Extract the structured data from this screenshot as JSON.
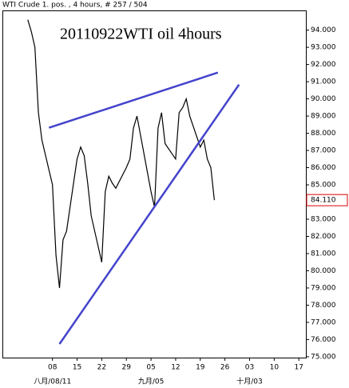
{
  "chart_data": {
    "type": "line",
    "title": "WTI Crude 1. pos. , 4 hours, # 257 / 504",
    "annotation": "20110922WTI oil 4hours",
    "x": [
      "2011-08-01",
      "2011-08-02",
      "2011-08-03",
      "2011-08-04",
      "2011-08-05",
      "2011-08-08",
      "2011-08-09",
      "2011-08-10",
      "2011-08-11",
      "2011-08-12",
      "2011-08-15",
      "2011-08-16",
      "2011-08-17",
      "2011-08-18",
      "2011-08-19",
      "2011-08-22",
      "2011-08-23",
      "2011-08-24",
      "2011-08-25",
      "2011-08-26",
      "2011-08-29",
      "2011-08-30",
      "2011-08-31",
      "2011-09-01",
      "2011-09-02",
      "2011-09-05",
      "2011-09-06",
      "2011-09-07",
      "2011-09-08",
      "2011-09-09",
      "2011-09-12",
      "2011-09-13",
      "2011-09-14",
      "2011-09-15",
      "2011-09-16",
      "2011-09-19",
      "2011-09-20",
      "2011-09-21",
      "2011-09-22",
      "2011-09-23"
    ],
    "series": [
      {
        "name": "WTI Crude",
        "color": "#000000",
        "values": [
          94.6,
          93.9,
          93.0,
          89.2,
          87.6,
          85.0,
          80.9,
          79.0,
          81.8,
          82.3,
          86.5,
          87.2,
          86.7,
          85.1,
          83.2,
          80.5,
          84.6,
          85.5,
          85.1,
          84.8,
          86.0,
          86.5,
          88.3,
          89.0,
          87.9,
          84.6,
          83.7,
          88.3,
          89.2,
          87.4,
          86.5,
          89.2,
          89.5,
          90.0,
          89.0,
          87.2,
          87.6,
          86.5,
          86.0,
          84.11
        ]
      }
    ],
    "trendlines": [
      {
        "x": [
          "2011-08-07",
          "2011-09-24"
        ],
        "values": [
          88.32,
          91.53
        ],
        "color": "#4444cc"
      },
      {
        "x": [
          "2011-08-10",
          "2011-09-30"
        ],
        "values": [
          75.74,
          90.83
        ],
        "color": "#4444cc"
      }
    ],
    "last_price": {
      "value": 84.11,
      "label": "84.110"
    },
    "xlim": [
      "2011-07-25",
      "2011-10-19"
    ],
    "xticks": [
      {
        "value": "2011-08-08",
        "label": "08"
      },
      {
        "value": "2011-08-15",
        "label": "15"
      },
      {
        "value": "2011-08-22",
        "label": "22"
      },
      {
        "value": "2011-08-29",
        "label": "29"
      },
      {
        "value": "2011-09-05",
        "label": "05"
      },
      {
        "value": "2011-09-12",
        "label": "12"
      },
      {
        "value": "2011-09-19",
        "label": "19"
      },
      {
        "value": "2011-09-26",
        "label": "26"
      },
      {
        "value": "2011-10-03",
        "label": "03"
      },
      {
        "value": "2011-10-10",
        "label": "10"
      },
      {
        "value": "2011-10-17",
        "label": "17"
      }
    ],
    "month_labels": [
      {
        "value": "2011-08-08",
        "label": "八月/08/11"
      },
      {
        "value": "2011-09-05",
        "label": "九月/05"
      },
      {
        "value": "2011-10-03",
        "label": "十月/03"
      }
    ],
    "ylim": [
      74.95,
      95.1
    ],
    "yticks": [
      {
        "value": 75,
        "label": "75.000"
      },
      {
        "value": 76,
        "label": "76.000"
      },
      {
        "value": 77,
        "label": "77.000"
      },
      {
        "value": 78,
        "label": "78.000"
      },
      {
        "value": 79,
        "label": "79.000"
      },
      {
        "value": 80,
        "label": "80.000"
      },
      {
        "value": 81,
        "label": "81.000"
      },
      {
        "value": 82,
        "label": "82.000"
      },
      {
        "value": 83,
        "label": "83.000"
      },
      {
        "value": 84,
        "label": "84.000"
      },
      {
        "value": 85,
        "label": "85.000"
      },
      {
        "value": 86,
        "label": "86.000"
      },
      {
        "value": 87,
        "label": "87.000"
      },
      {
        "value": 88,
        "label": "88.000"
      },
      {
        "value": 89,
        "label": "89.000"
      },
      {
        "value": 90,
        "label": "90.000"
      },
      {
        "value": 91,
        "label": "91.000"
      },
      {
        "value": 92,
        "label": "92.000"
      },
      {
        "value": 93,
        "label": "93.000"
      },
      {
        "value": 94,
        "label": "94.000"
      }
    ]
  }
}
